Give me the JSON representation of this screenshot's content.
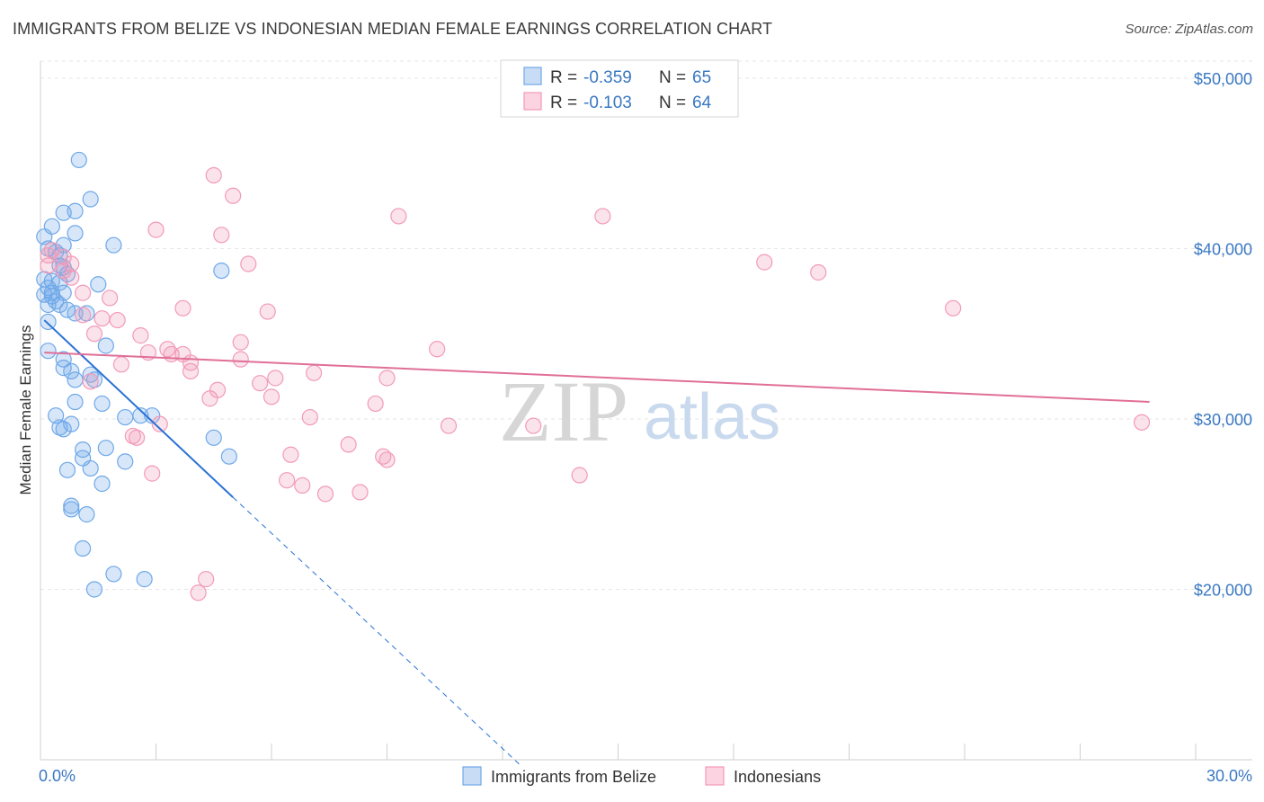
{
  "title": "IMMIGRANTS FROM BELIZE VS INDONESIAN MEDIAN FEMALE EARNINGS CORRELATION CHART",
  "source": "Source: ZipAtlas.com",
  "watermark": {
    "zip": "ZIP",
    "atlas": "atlas"
  },
  "chart_data": {
    "type": "scatter",
    "xlabel": "",
    "ylabel": "Median Female Earnings",
    "xlim": [
      0,
      30
    ],
    "ylim": [
      10000,
      51000
    ],
    "x_tick_labels": [
      "0.0%",
      "30.0%"
    ],
    "y_ticks": [
      {
        "value": 20000,
        "label": "$20,000"
      },
      {
        "value": 30000,
        "label": "$30,000"
      },
      {
        "value": 40000,
        "label": "$40,000"
      },
      {
        "value": 50000,
        "label": "$50,000"
      }
    ],
    "grid": true,
    "legend": {
      "placement": "top-center",
      "entries": [
        {
          "r_label": "R =",
          "r_value": "-0.359",
          "n_label": "N =",
          "n_value": "65",
          "color": "#6fa8e8"
        },
        {
          "r_label": "R =",
          "r_value": "-0.103",
          "n_label": "N =",
          "n_value": "64",
          "color": "#f29ab8"
        }
      ]
    },
    "series": [
      {
        "name": "Immigrants from Belize",
        "color": "#6fa8e8",
        "line_color": "#2a72d4",
        "trend": {
          "x0": 0.1,
          "y0": 35800,
          "x1": 5.0,
          "y1": 25400,
          "dash_x1": 12.5,
          "dash_y1": 9600
        },
        "points": [
          [
            1.0,
            45200
          ],
          [
            1.3,
            42900
          ],
          [
            0.6,
            42100
          ],
          [
            0.9,
            42200
          ],
          [
            0.3,
            41300
          ],
          [
            0.9,
            40900
          ],
          [
            0.1,
            40700
          ],
          [
            1.9,
            40200
          ],
          [
            0.6,
            40200
          ],
          [
            0.2,
            40000
          ],
          [
            0.4,
            39800
          ],
          [
            0.5,
            39600
          ],
          [
            0.5,
            39000
          ],
          [
            0.6,
            38900
          ],
          [
            4.7,
            38700
          ],
          [
            0.7,
            38500
          ],
          [
            0.1,
            38200
          ],
          [
            0.3,
            38100
          ],
          [
            0.5,
            38000
          ],
          [
            1.5,
            37900
          ],
          [
            0.2,
            37700
          ],
          [
            0.3,
            37400
          ],
          [
            0.6,
            37400
          ],
          [
            0.1,
            37300
          ],
          [
            0.4,
            36900
          ],
          [
            0.2,
            36700
          ],
          [
            0.5,
            36700
          ],
          [
            0.7,
            36400
          ],
          [
            1.2,
            36200
          ],
          [
            0.9,
            36200
          ],
          [
            0.2,
            35700
          ],
          [
            1.7,
            34300
          ],
          [
            0.2,
            34000
          ],
          [
            0.6,
            33500
          ],
          [
            0.6,
            33000
          ],
          [
            0.8,
            32800
          ],
          [
            1.3,
            32600
          ],
          [
            0.9,
            32300
          ],
          [
            1.4,
            32300
          ],
          [
            0.9,
            31000
          ],
          [
            1.6,
            30900
          ],
          [
            0.4,
            30200
          ],
          [
            2.2,
            30100
          ],
          [
            2.6,
            30200
          ],
          [
            2.9,
            30200
          ],
          [
            0.5,
            29500
          ],
          [
            0.8,
            29700
          ],
          [
            0.6,
            29400
          ],
          [
            4.5,
            28900
          ],
          [
            1.1,
            28200
          ],
          [
            1.7,
            28300
          ],
          [
            1.1,
            27700
          ],
          [
            4.9,
            27800
          ],
          [
            2.2,
            27500
          ],
          [
            0.7,
            27000
          ],
          [
            1.3,
            27100
          ],
          [
            1.6,
            26200
          ],
          [
            0.8,
            24900
          ],
          [
            0.8,
            24700
          ],
          [
            1.2,
            24400
          ],
          [
            1.1,
            22400
          ],
          [
            1.9,
            20900
          ],
          [
            2.7,
            20600
          ],
          [
            1.4,
            20000
          ],
          [
            0.3,
            37200
          ]
        ]
      },
      {
        "name": "Indonesians",
        "color": "#f29ab8",
        "line_color": "#e06f98",
        "trend": {
          "x0": 0.1,
          "y0": 33900,
          "x1": 28.8,
          "y1": 31000
        },
        "points": [
          [
            4.5,
            44300
          ],
          [
            5.0,
            43100
          ],
          [
            9.3,
            41900
          ],
          [
            14.6,
            41900
          ],
          [
            3.0,
            41100
          ],
          [
            4.7,
            40800
          ],
          [
            0.3,
            39900
          ],
          [
            0.2,
            39600
          ],
          [
            0.6,
            39500
          ],
          [
            0.8,
            39100
          ],
          [
            5.4,
            39100
          ],
          [
            18.8,
            39200
          ],
          [
            20.2,
            38600
          ],
          [
            0.6,
            38700
          ],
          [
            0.8,
            38300
          ],
          [
            1.1,
            37400
          ],
          [
            1.8,
            37100
          ],
          [
            3.7,
            36500
          ],
          [
            1.1,
            36100
          ],
          [
            2.0,
            35800
          ],
          [
            1.6,
            35900
          ],
          [
            5.9,
            36300
          ],
          [
            23.7,
            36500
          ],
          [
            1.4,
            35000
          ],
          [
            2.6,
            34900
          ],
          [
            5.2,
            34500
          ],
          [
            10.3,
            34100
          ],
          [
            2.8,
            33900
          ],
          [
            3.3,
            34100
          ],
          [
            3.4,
            33800
          ],
          [
            3.7,
            33800
          ],
          [
            3.9,
            33300
          ],
          [
            5.2,
            33500
          ],
          [
            2.1,
            33200
          ],
          [
            7.1,
            32700
          ],
          [
            3.9,
            32800
          ],
          [
            9.0,
            32400
          ],
          [
            6.1,
            32400
          ],
          [
            5.7,
            32100
          ],
          [
            1.3,
            32200
          ],
          [
            4.6,
            31700
          ],
          [
            4.4,
            31200
          ],
          [
            6.0,
            31300
          ],
          [
            8.7,
            30900
          ],
          [
            7.0,
            30100
          ],
          [
            3.1,
            29700
          ],
          [
            10.6,
            29600
          ],
          [
            12.8,
            29600
          ],
          [
            28.6,
            29800
          ],
          [
            2.4,
            29000
          ],
          [
            2.5,
            28900
          ],
          [
            8.0,
            28500
          ],
          [
            6.5,
            27900
          ],
          [
            8.9,
            27800
          ],
          [
            9.0,
            27600
          ],
          [
            2.9,
            26800
          ],
          [
            14.0,
            26700
          ],
          [
            6.4,
            26400
          ],
          [
            6.8,
            26100
          ],
          [
            7.4,
            25600
          ],
          [
            8.3,
            25700
          ],
          [
            4.3,
            20600
          ],
          [
            4.1,
            19800
          ],
          [
            0.2,
            39000
          ]
        ]
      }
    ]
  }
}
